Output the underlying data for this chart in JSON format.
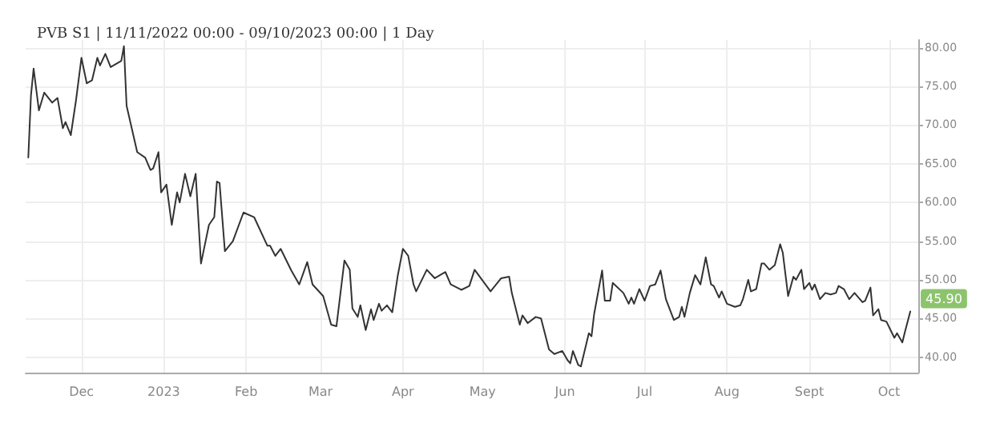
{
  "chart_data": {
    "type": "line",
    "title": "PVB S1 | 11/11/2022 00:00 - 09/10/2023 00:00 | 1 Day",
    "xlim": [
      "2022-11-10",
      "2023-10-12"
    ],
    "xticks": [
      {
        "value": "2022-12-01",
        "label": "Dec"
      },
      {
        "value": "2023-01-01",
        "label": "2023"
      },
      {
        "value": "2023-02-01",
        "label": "Feb"
      },
      {
        "value": "2023-03-01",
        "label": "Mar"
      },
      {
        "value": "2023-04-01",
        "label": "Apr"
      },
      {
        "value": "2023-05-01",
        "label": "May"
      },
      {
        "value": "2023-06-01",
        "label": "Jun"
      },
      {
        "value": "2023-07-01",
        "label": "Jul"
      },
      {
        "value": "2023-08-01",
        "label": "Aug"
      },
      {
        "value": "2023-09-01",
        "label": "Sept"
      },
      {
        "value": "2023-10-01",
        "label": "Oct"
      }
    ],
    "ylim": [
      38,
      81
    ],
    "yticks": [
      {
        "value": 40,
        "label": "40.00"
      },
      {
        "value": 45,
        "label": "45.00"
      },
      {
        "value": 50,
        "label": "50.00"
      },
      {
        "value": 55,
        "label": "55.00"
      },
      {
        "value": 60,
        "label": "60.00"
      },
      {
        "value": 65,
        "label": "65.00"
      },
      {
        "value": 70,
        "label": "70.00"
      },
      {
        "value": 75,
        "label": "75.00"
      },
      {
        "value": 80,
        "label": "80.00"
      }
    ],
    "grid": true,
    "marker": "none",
    "line_style": "solid",
    "annotations": [
      {
        "text": "45.90",
        "x": "2023-10-09",
        "y": 45.9
      }
    ],
    "series": [
      {
        "color": "#333333",
        "x": [
          "2022-11-11",
          "2022-11-12",
          "2022-11-13",
          "2022-11-15",
          "2022-11-17",
          "2022-11-20",
          "2022-11-22",
          "2022-11-24",
          "2022-11-25",
          "2022-11-27",
          "2022-11-29",
          "2022-12-01",
          "2022-12-03",
          "2022-12-05",
          "2022-12-07",
          "2022-12-08",
          "2022-12-10",
          "2022-12-12",
          "2022-12-16",
          "2022-12-17",
          "2022-12-18",
          "2022-12-22",
          "2022-12-25",
          "2022-12-27",
          "2022-12-28",
          "2022-12-30",
          "2022-12-31",
          "2023-01-02",
          "2023-01-04",
          "2023-01-06",
          "2023-01-07",
          "2023-01-09",
          "2023-01-11",
          "2023-01-13",
          "2023-01-15",
          "2023-01-18",
          "2023-01-20",
          "2023-01-21",
          "2023-01-22",
          "2023-01-24",
          "2023-01-27",
          "2023-01-31",
          "2023-02-04",
          "2023-02-09",
          "2023-02-10",
          "2023-02-12",
          "2023-02-14",
          "2023-02-18",
          "2023-02-21",
          "2023-02-24",
          "2023-02-26",
          "2023-03-02",
          "2023-03-05",
          "2023-03-07",
          "2023-03-10",
          "2023-03-12",
          "2023-03-13",
          "2023-03-15",
          "2023-03-16",
          "2023-03-18",
          "2023-03-20",
          "2023-03-21",
          "2023-03-23",
          "2023-03-24",
          "2023-03-26",
          "2023-03-28",
          "2023-03-30",
          "2023-04-01",
          "2023-04-03",
          "2023-04-05",
          "2023-04-06",
          "2023-04-10",
          "2023-04-13",
          "2023-04-17",
          "2023-04-19",
          "2023-04-23",
          "2023-04-26",
          "2023-04-28",
          "2023-05-04",
          "2023-05-08",
          "2023-05-11",
          "2023-05-12",
          "2023-05-15",
          "2023-05-16",
          "2023-05-18",
          "2023-05-21",
          "2023-05-23",
          "2023-05-26",
          "2023-05-28",
          "2023-05-31",
          "2023-06-02",
          "2023-06-03",
          "2023-06-04",
          "2023-06-06",
          "2023-06-07",
          "2023-06-10",
          "2023-06-11",
          "2023-06-12",
          "2023-06-15",
          "2023-06-16",
          "2023-06-18",
          "2023-06-19",
          "2023-06-23",
          "2023-06-25",
          "2023-06-26",
          "2023-06-27",
          "2023-06-29",
          "2023-07-01",
          "2023-07-03",
          "2023-07-05",
          "2023-07-07",
          "2023-07-09",
          "2023-07-12",
          "2023-07-14",
          "2023-07-15",
          "2023-07-16",
          "2023-07-18",
          "2023-07-20",
          "2023-07-22",
          "2023-07-24",
          "2023-07-26",
          "2023-07-27",
          "2023-07-29",
          "2023-07-30",
          "2023-08-01",
          "2023-08-04",
          "2023-08-06",
          "2023-08-07",
          "2023-08-09",
          "2023-08-10",
          "2023-08-12",
          "2023-08-14",
          "2023-08-15",
          "2023-08-17",
          "2023-08-19",
          "2023-08-21",
          "2023-08-22",
          "2023-08-24",
          "2023-08-26",
          "2023-08-27",
          "2023-08-29",
          "2023-08-30",
          "2023-09-01",
          "2023-09-02",
          "2023-09-03",
          "2023-09-05",
          "2023-09-07",
          "2023-09-09",
          "2023-09-11",
          "2023-09-12",
          "2023-09-14",
          "2023-09-16",
          "2023-09-18",
          "2023-09-21",
          "2023-09-22",
          "2023-09-24",
          "2023-09-25",
          "2023-09-27",
          "2023-09-28",
          "2023-09-30",
          "2023-10-03",
          "2023-10-04",
          "2023-10-06",
          "2023-10-07",
          "2023-10-09"
        ],
        "values": [
          65.8,
          73.8,
          77.3,
          71.9,
          74.2,
          72.9,
          73.5,
          69.6,
          70.4,
          68.7,
          73.3,
          78.7,
          75.4,
          75.8,
          78.7,
          77.7,
          79.2,
          77.5,
          78.3,
          80.2,
          72.5,
          66.5,
          65.8,
          64.2,
          64.4,
          66.5,
          61.3,
          62.3,
          57.1,
          61.3,
          60,
          63.7,
          60.8,
          63.7,
          52.1,
          57.1,
          58.1,
          62.7,
          62.5,
          53.7,
          55,
          58.7,
          58.1,
          54.4,
          54.4,
          53.1,
          54,
          51.2,
          49.4,
          52.3,
          49.4,
          47.9,
          44.2,
          44,
          52.5,
          51.3,
          46.3,
          45.2,
          46.7,
          43.5,
          46.2,
          44.8,
          46.9,
          46,
          46.7,
          45.8,
          50.4,
          54,
          53.1,
          49.4,
          48.5,
          51.3,
          50.2,
          51,
          49.4,
          48.7,
          49.2,
          51.3,
          48.5,
          50.2,
          50.4,
          48.3,
          44.2,
          45.4,
          44.4,
          45.2,
          45,
          41,
          40.4,
          40.8,
          39.6,
          39.2,
          40.8,
          39,
          38.8,
          43.1,
          42.7,
          45.6,
          51.2,
          47.3,
          47.3,
          49.6,
          48.3,
          46.9,
          47.7,
          46.9,
          48.8,
          47.3,
          49.2,
          49.4,
          51.2,
          47.5,
          44.8,
          45.2,
          46.5,
          45.2,
          48.3,
          50.6,
          49.4,
          52.9,
          49.4,
          49.2,
          47.7,
          48.5,
          46.9,
          46.5,
          46.7,
          47.5,
          50,
          48.5,
          48.8,
          52.1,
          52.1,
          51.3,
          51.9,
          54.6,
          53.5,
          47.9,
          50.4,
          50,
          51.3,
          48.8,
          49.6,
          48.7,
          49.4,
          47.5,
          48.3,
          48.1,
          48.3,
          49.2,
          48.8,
          47.5,
          48.3,
          47.1,
          47.3,
          49,
          45.4,
          46.2,
          44.8,
          44.6,
          42.5,
          43.1,
          41.9,
          43.3,
          45.9
        ]
      }
    ]
  }
}
